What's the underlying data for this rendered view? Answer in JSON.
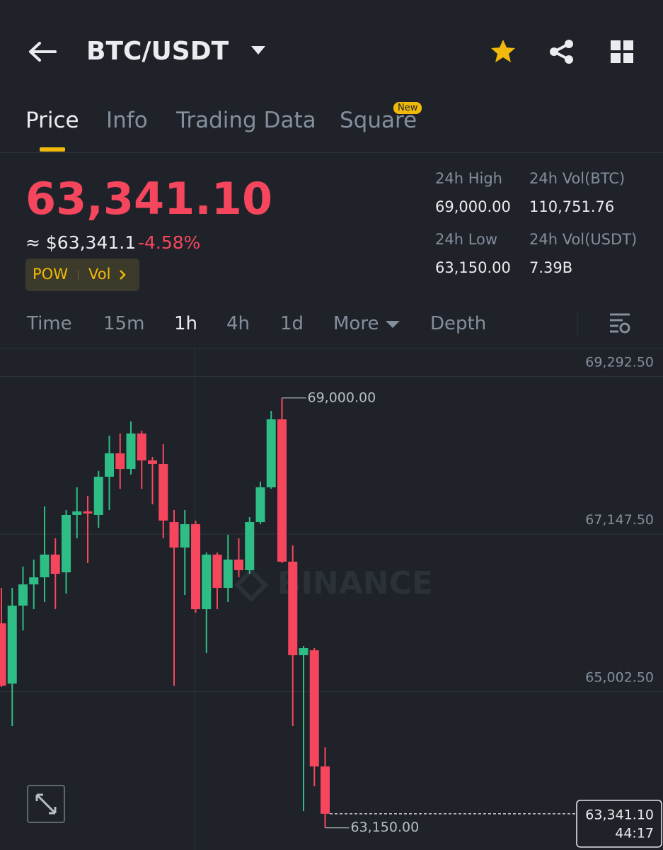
{
  "header": {
    "pair": "BTC/USDT"
  },
  "tabs": [
    "Price",
    "Info",
    "Trading Data",
    "Square"
  ],
  "tab_badge": "New",
  "ticker": {
    "last": "63,341.10",
    "usd": "≈ $63,341.1",
    "change": "-4.58%",
    "tags": [
      "POW",
      "Vol"
    ]
  },
  "stats": [
    {
      "label": "24h High",
      "value": "69,000.00"
    },
    {
      "label": "24h Vol(BTC)",
      "value": "110,751.76"
    },
    {
      "label": "24h Low",
      "value": "63,150.00"
    },
    {
      "label": "24h Vol(USDT)",
      "value": "7.39B"
    }
  ],
  "intervals": [
    "Time",
    "15m",
    "1h",
    "4h",
    "1d",
    "More",
    "Depth"
  ],
  "chart_data": {
    "type": "candlestick",
    "watermark": "BINANCE",
    "candles": [
      {
        "open": 65933,
        "high": 66415,
        "low": 65065,
        "close": 65085
      },
      {
        "open": 65113,
        "high": 66415,
        "low": 64535,
        "close": 66174
      },
      {
        "open": 66174,
        "high": 66704,
        "low": 65836,
        "close": 66463
      },
      {
        "open": 66463,
        "high": 66800,
        "low": 66125,
        "close": 66559
      },
      {
        "open": 66559,
        "high": 67523,
        "low": 66222,
        "close": 66868
      },
      {
        "open": 66868,
        "high": 67090,
        "low": 66125,
        "close": 66607
      },
      {
        "open": 66627,
        "high": 67475,
        "low": 66338,
        "close": 67408
      },
      {
        "open": 67408,
        "high": 67784,
        "low": 67090,
        "close": 67456
      },
      {
        "open": 67456,
        "high": 67668,
        "low": 66752,
        "close": 67427
      },
      {
        "open": 67408,
        "high": 68006,
        "low": 67234,
        "close": 67928
      },
      {
        "open": 67928,
        "high": 68487,
        "low": 67475,
        "close": 68246
      },
      {
        "open": 68246,
        "high": 68516,
        "low": 67764,
        "close": 68034
      },
      {
        "open": 68034,
        "high": 68680,
        "low": 67957,
        "close": 68516
      },
      {
        "open": 68516,
        "high": 68555,
        "low": 67764,
        "close": 68150
      },
      {
        "open": 68150,
        "high": 68198,
        "low": 67552,
        "close": 68102
      },
      {
        "open": 68102,
        "high": 68372,
        "low": 67090,
        "close": 67331
      },
      {
        "open": 67311,
        "high": 67475,
        "low": 65085,
        "close": 66964
      },
      {
        "open": 66964,
        "high": 67475,
        "low": 66318,
        "close": 67282
      },
      {
        "open": 67282,
        "high": 67331,
        "low": 66077,
        "close": 66125
      },
      {
        "open": 66125,
        "high": 66897,
        "low": 65528,
        "close": 66868
      },
      {
        "open": 66868,
        "high": 66897,
        "low": 66125,
        "close": 66415
      },
      {
        "open": 66415,
        "high": 67138,
        "low": 66222,
        "close": 66800
      },
      {
        "open": 66800,
        "high": 67090,
        "low": 66559,
        "close": 66656
      },
      {
        "open": 66656,
        "high": 67379,
        "low": 66607,
        "close": 67311
      },
      {
        "open": 67311,
        "high": 67861,
        "low": 67282,
        "close": 67784
      },
      {
        "open": 67784,
        "high": 68825,
        "low": 67764,
        "close": 68709
      },
      {
        "open": 68709,
        "high": 69000,
        "low": 66752,
        "close": 66772
      },
      {
        "open": 66772,
        "high": 66993,
        "low": 64535,
        "close": 65499
      },
      {
        "open": 65499,
        "high": 65624,
        "low": 63378,
        "close": 65595
      },
      {
        "open": 65566,
        "high": 65595,
        "low": 63716,
        "close": 63985
      },
      {
        "open": 63985,
        "high": 64246,
        "low": 63150,
        "close": 63341.1
      }
    ],
    "ylim": [
      62848,
      69673
    ],
    "yticks": [
      {
        "value": 65002.5,
        "label": "65,002.50"
      },
      {
        "value": 67147.5,
        "label": "67,147.50"
      },
      {
        "value": 69292.5,
        "label": "69,292.50"
      }
    ],
    "grid": true,
    "up_color": "#2ebd85",
    "down_color": "#f6465d",
    "annotations": [
      {
        "value": 69000,
        "label": "69,000.00"
      },
      {
        "value": 63150,
        "label": "63,150.00"
      }
    ],
    "last_price": {
      "value": 63341.1,
      "label": "63,341.10",
      "countdown": "44:17"
    }
  }
}
